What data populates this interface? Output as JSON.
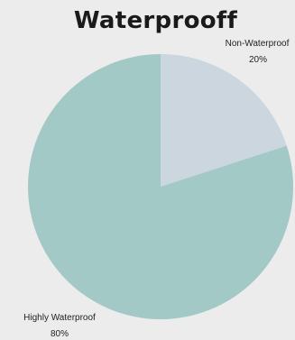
{
  "chart_data": {
    "type": "pie",
    "title": "Waterprooff",
    "slices": [
      {
        "label": "Non-Waterproof",
        "percent_label": "20%",
        "value": 20,
        "color": "#cbd6df"
      },
      {
        "label": "Highly Waterproof",
        "percent_label": "80%",
        "value": 80,
        "color": "#a2c9c5"
      }
    ],
    "start_angle_deg": 0,
    "direction": "clockwise",
    "legend": "none"
  }
}
